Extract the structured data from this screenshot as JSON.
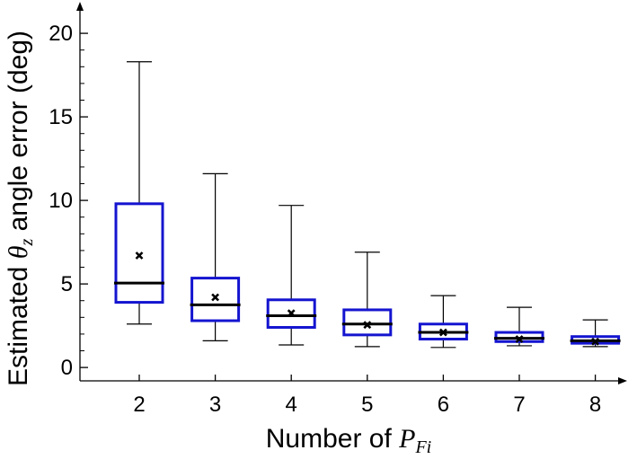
{
  "chart_data": {
    "type": "box",
    "categories": [
      "2",
      "3",
      "4",
      "5",
      "6",
      "7",
      "8"
    ],
    "series": [
      {
        "boxes": [
          {
            "x": "2",
            "min": 2.6,
            "q1": 3.9,
            "median": 5.05,
            "q3": 9.8,
            "max": 18.3,
            "mean": 6.7
          },
          {
            "x": "3",
            "min": 1.6,
            "q1": 2.8,
            "median": 3.75,
            "q3": 5.35,
            "max": 11.6,
            "mean": 4.2
          },
          {
            "x": "4",
            "min": 1.35,
            "q1": 2.4,
            "median": 3.1,
            "q3": 4.05,
            "max": 9.7,
            "mean": 3.25
          },
          {
            "x": "5",
            "min": 1.25,
            "q1": 1.95,
            "median": 2.6,
            "q3": 3.45,
            "max": 6.9,
            "mean": 2.55
          },
          {
            "x": "6",
            "min": 1.2,
            "q1": 1.7,
            "median": 2.1,
            "q3": 2.6,
            "max": 4.3,
            "mean": 2.1
          },
          {
            "x": "7",
            "min": 1.3,
            "q1": 1.55,
            "median": 1.75,
            "q3": 2.1,
            "max": 3.6,
            "mean": 1.7
          },
          {
            "x": "8",
            "min": 1.25,
            "q1": 1.45,
            "median": 1.6,
            "q3": 1.85,
            "max": 2.85,
            "mean": 1.55
          }
        ]
      }
    ],
    "ylim": [
      -0.8,
      21
    ],
    "yticks": [
      "0",
      "5",
      "10",
      "15",
      "20"
    ],
    "ytick_values": [
      0,
      5,
      10,
      15,
      20
    ],
    "xlabel": {
      "prefix": "Number of ",
      "sym": "P",
      "sub": "Fi"
    },
    "ylabel": {
      "prefix": "Estimated ",
      "sym": "θ",
      "sub": "z",
      "suffix": " angle error (deg)"
    },
    "mean_marker": "×",
    "grid": false,
    "colors": {
      "box": "#1414d0",
      "median": "#000000",
      "whisker": "#000000",
      "mean": "#000000"
    }
  }
}
